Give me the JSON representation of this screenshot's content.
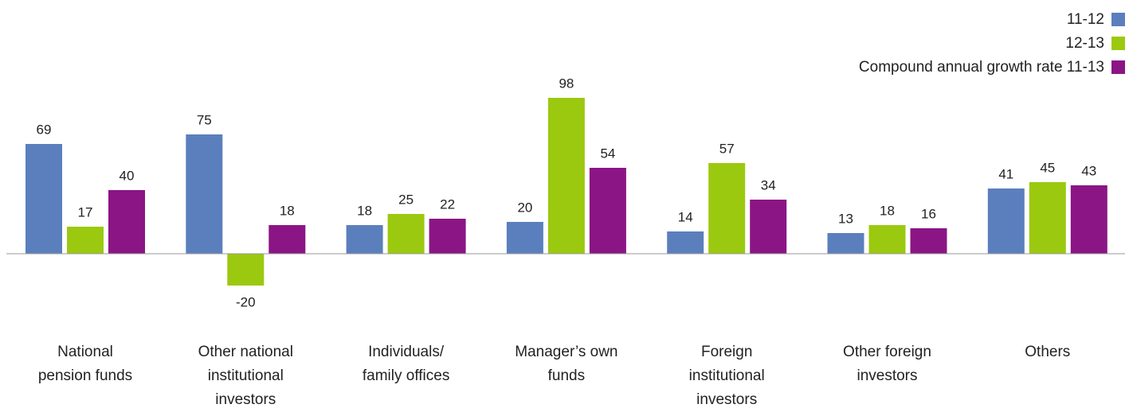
{
  "chart_data": {
    "type": "bar",
    "categories": [
      "National pension funds",
      "Other national institutional investors",
      "Individuals/ family offices",
      "Manager’s own funds",
      "Foreign institutional investors",
      "Other foreign investors",
      "Others"
    ],
    "series": [
      {
        "name": "11-12",
        "color": "#5b7fbd",
        "values": [
          69,
          75,
          18,
          20,
          14,
          13,
          41
        ]
      },
      {
        "name": "12-13",
        "color": "#9bc90f",
        "values": [
          17,
          -20,
          25,
          98,
          57,
          18,
          45
        ]
      },
      {
        "name": "Compound annual growth rate 11-13",
        "color": "#8b1585",
        "values": [
          40,
          18,
          22,
          54,
          34,
          16,
          43
        ]
      }
    ],
    "legend": "top-right"
  }
}
